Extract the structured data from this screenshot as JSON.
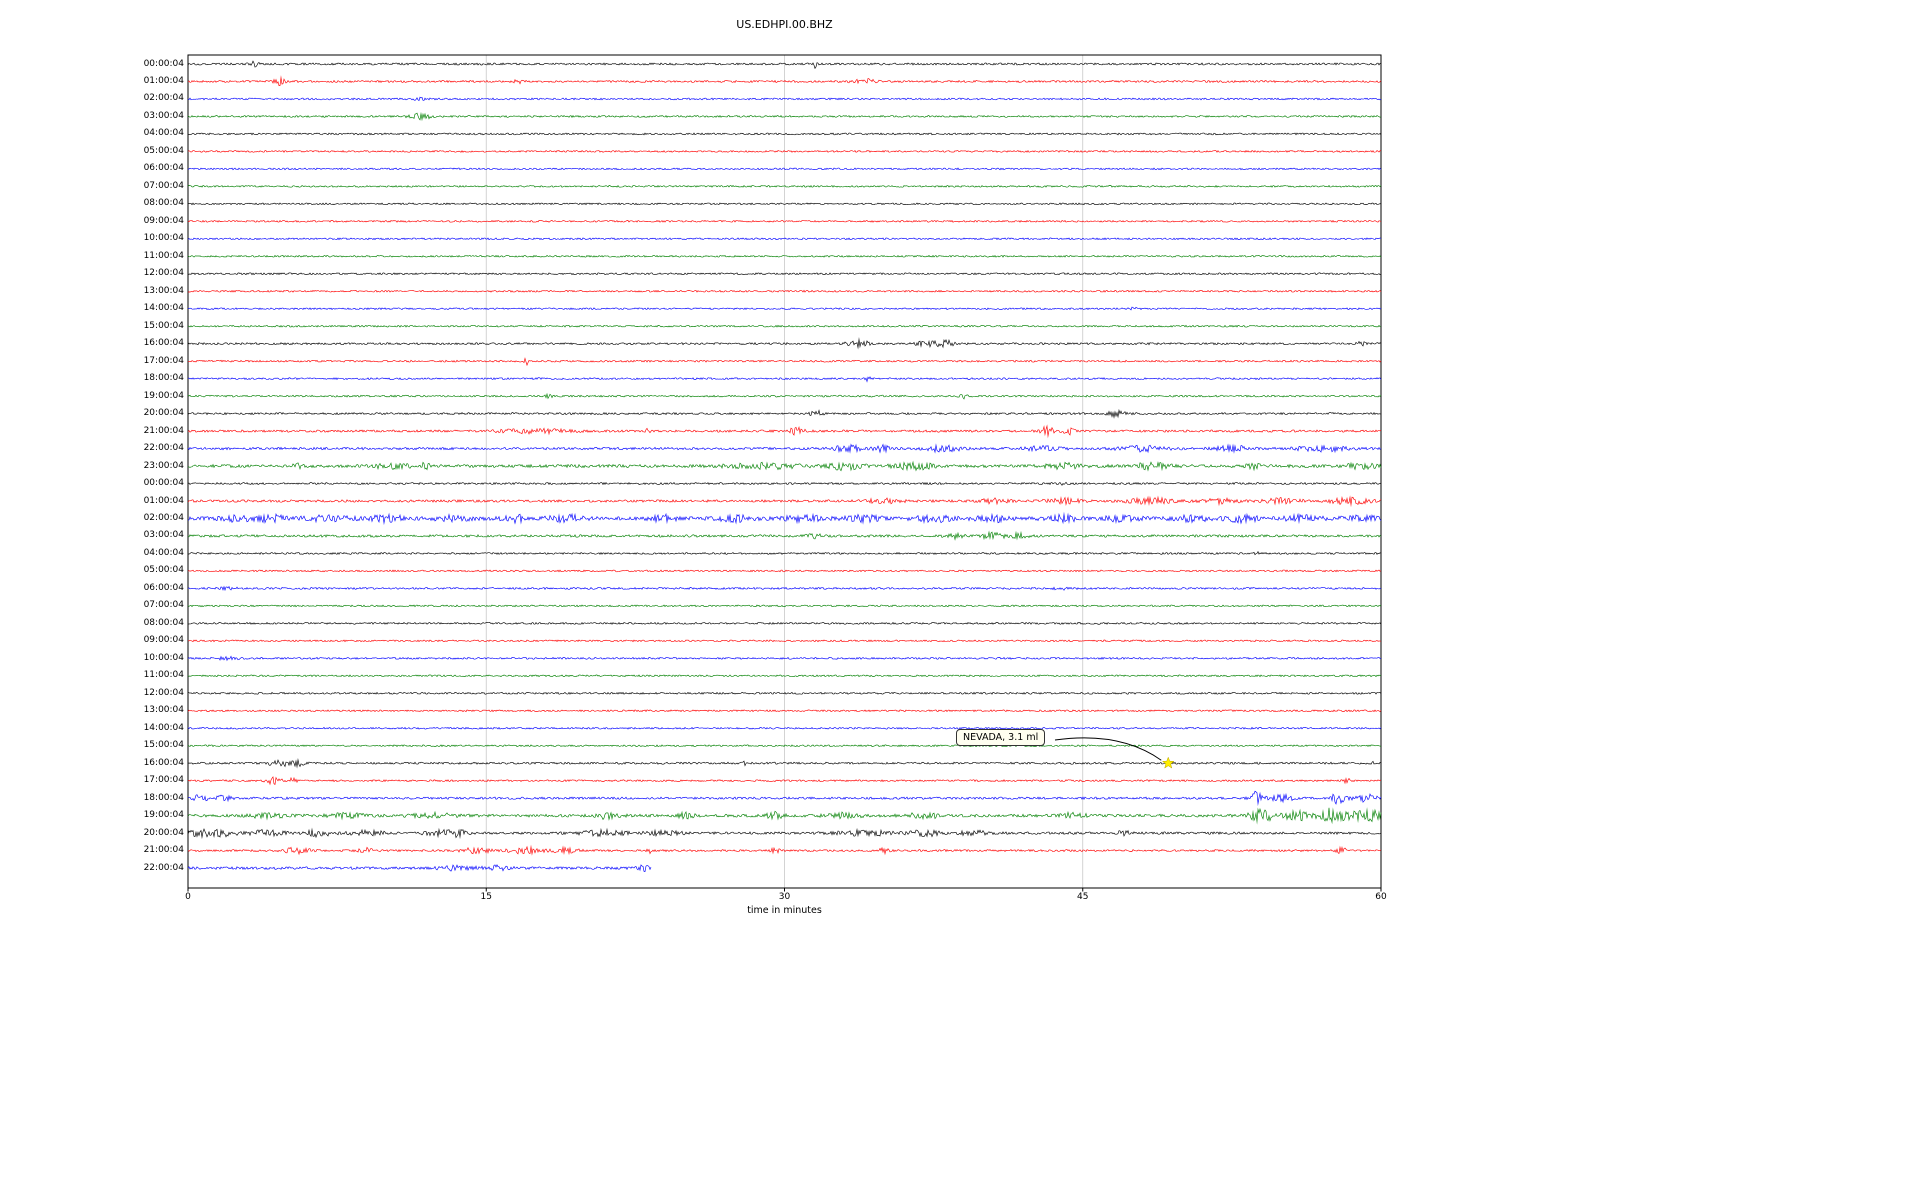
{
  "title": "US.EDHPI.00.BHZ",
  "xlabel": "time in minutes",
  "annotation": {
    "text": "NEVADA, 3.1 ml",
    "row_index": 40,
    "row_label": "16:00:04",
    "x_min": 49.3,
    "marker": "yellow-star"
  },
  "colors": {
    "background": "#ffffff",
    "grid": "#c8c8c8",
    "axis": "#000000",
    "star": "#ffef00"
  },
  "chart_data": {
    "type": "line",
    "subtype": "helicorder-seismogram",
    "x_range": [
      0,
      60
    ],
    "x_ticks": [
      "0",
      "15",
      "30",
      "45",
      "60"
    ],
    "grid_minutes": [
      15,
      30,
      45
    ],
    "trace_colors": {
      "black": "#000000",
      "red": "#ff0000",
      "blue": "#0000ff",
      "green": "#008000"
    },
    "rows": [
      {
        "label": "00:00:04",
        "color": "black",
        "amp": 1.0,
        "events": [
          [
            3.3,
            2.5,
            0.3
          ],
          [
            31.5,
            5,
            0.12
          ]
        ]
      },
      {
        "label": "01:00:04",
        "color": "red",
        "amp": 1.0,
        "events": [
          [
            4.6,
            3.5,
            0.35
          ],
          [
            16.6,
            3.5,
            0.25
          ],
          [
            33.5,
            2,
            0.3
          ],
          [
            34.3,
            2.5,
            0.5
          ]
        ]
      },
      {
        "label": "02:00:04",
        "color": "blue",
        "amp": 0.9,
        "events": [
          [
            11.5,
            1.2,
            0.6
          ]
        ]
      },
      {
        "label": "03:00:04",
        "color": "green",
        "amp": 0.9,
        "events": [
          [
            11.7,
            2.8,
            0.9
          ]
        ]
      },
      {
        "label": "04:00:04",
        "color": "black",
        "amp": 0.9,
        "events": []
      },
      {
        "label": "05:00:04",
        "color": "red",
        "amp": 0.85,
        "events": []
      },
      {
        "label": "06:00:04",
        "color": "blue",
        "amp": 0.85,
        "events": []
      },
      {
        "label": "07:00:04",
        "color": "green",
        "amp": 0.85,
        "events": []
      },
      {
        "label": "08:00:04",
        "color": "black",
        "amp": 0.85,
        "events": []
      },
      {
        "label": "09:00:04",
        "color": "red",
        "amp": 0.85,
        "events": []
      },
      {
        "label": "10:00:04",
        "color": "blue",
        "amp": 0.85,
        "events": []
      },
      {
        "label": "11:00:04",
        "color": "green",
        "amp": 0.85,
        "events": []
      },
      {
        "label": "12:00:04",
        "color": "black",
        "amp": 0.9,
        "events": []
      },
      {
        "label": "13:00:04",
        "color": "red",
        "amp": 0.85,
        "events": []
      },
      {
        "label": "14:00:04",
        "color": "blue",
        "amp": 0.85,
        "events": [
          [
            47.5,
            1.2,
            0.3
          ]
        ]
      },
      {
        "label": "15:00:04",
        "color": "green",
        "amp": 0.85,
        "events": []
      },
      {
        "label": "16:00:04",
        "color": "black",
        "amp": 1.0,
        "events": [
          [
            33.7,
            4,
            0.7
          ],
          [
            37.3,
            3,
            0.9
          ],
          [
            38.2,
            3,
            0.4
          ],
          [
            59,
            1.8,
            0.3
          ]
        ]
      },
      {
        "label": "17:00:04",
        "color": "red",
        "amp": 0.9,
        "events": [
          [
            17,
            4.5,
            0.12
          ]
        ]
      },
      {
        "label": "18:00:04",
        "color": "blue",
        "amp": 0.9,
        "events": [
          [
            34.2,
            3.5,
            0.18
          ]
        ]
      },
      {
        "label": "19:00:04",
        "color": "green",
        "amp": 0.9,
        "events": [
          [
            18.2,
            2,
            0.3
          ],
          [
            39,
            2.8,
            0.2
          ]
        ]
      },
      {
        "label": "20:00:04",
        "color": "black",
        "amp": 1.0,
        "events": [
          [
            31.6,
            3,
            0.4
          ],
          [
            46.7,
            2.8,
            0.7
          ]
        ]
      },
      {
        "label": "21:00:04",
        "color": "red",
        "amp": 1.1,
        "events": [
          [
            17.5,
            2,
            2.5
          ],
          [
            23.1,
            3.5,
            0.15
          ],
          [
            30.6,
            3.5,
            0.5
          ],
          [
            43.2,
            4.5,
            0.5
          ],
          [
            44.3,
            3.5,
            0.4
          ]
        ]
      },
      {
        "label": "22:00:04",
        "color": "blue",
        "amp": 1.2,
        "events": [
          [
            33.2,
            3.5,
            0.9
          ],
          [
            34.9,
            3,
            0.6
          ],
          [
            38,
            3,
            1.2
          ],
          [
            43,
            2.2,
            1.2
          ],
          [
            48,
            2.8,
            1.6
          ],
          [
            52.5,
            2.5,
            1.2
          ],
          [
            57,
            2.8,
            1.6
          ]
        ]
      },
      {
        "label": "23:00:04",
        "color": "green",
        "amp": 1.5,
        "events": [
          [
            5.5,
            3,
            0.3
          ],
          [
            10.2,
            2.5,
            1.2
          ],
          [
            11.8,
            3,
            0.6
          ],
          [
            29,
            2.5,
            2.5
          ],
          [
            33,
            3.5,
            1.2
          ],
          [
            36.5,
            3,
            1.5
          ],
          [
            44,
            2.5,
            1.2
          ],
          [
            48.5,
            3,
            1.2
          ],
          [
            53.5,
            2.5,
            0.6
          ],
          [
            59,
            2.5,
            1.0
          ]
        ]
      },
      {
        "label": "00:00:04",
        "color": "black",
        "amp": 0.95,
        "events": [
          [
            44,
            1.3,
            0.5
          ]
        ]
      },
      {
        "label": "01:00:04",
        "color": "red",
        "amp": 1.2,
        "events": [
          [
            35,
            2,
            1.2
          ],
          [
            40.5,
            2.5,
            0.9
          ],
          [
            44,
            2.5,
            1.2
          ],
          [
            48.5,
            3,
            1.6
          ],
          [
            52,
            2.5,
            1.2
          ],
          [
            55,
            2.5,
            1.2
          ],
          [
            58.5,
            3.5,
            1.3
          ]
        ]
      },
      {
        "label": "02:00:04",
        "color": "blue",
        "amp": 1.8,
        "events": [
          [
            2.5,
            2.5,
            1.2
          ],
          [
            4.2,
            3,
            0.9
          ],
          [
            7,
            2.5,
            1.6
          ],
          [
            10,
            3,
            1.2
          ],
          [
            13.2,
            2.5,
            1.2
          ],
          [
            16.5,
            3.5,
            0.9
          ],
          [
            19,
            3,
            1.2
          ],
          [
            24,
            3,
            0.9
          ],
          [
            27.5,
            2.5,
            1.2
          ],
          [
            31,
            3,
            1.2
          ],
          [
            34,
            2.5,
            1.2
          ],
          [
            37.5,
            3,
            1.2
          ],
          [
            40.5,
            3,
            1.2
          ],
          [
            44,
            2.5,
            1.2
          ],
          [
            47,
            2.5,
            1.2
          ],
          [
            50.5,
            2.5,
            1.2
          ],
          [
            53,
            3,
            1.2
          ],
          [
            56,
            2.5,
            1.2
          ],
          [
            59,
            2.5,
            1.2
          ]
        ]
      },
      {
        "label": "03:00:04",
        "color": "green",
        "amp": 1.2,
        "events": [
          [
            31.5,
            1.8,
            0.6
          ],
          [
            38.5,
            2.5,
            0.6
          ],
          [
            40.5,
            3,
            0.9
          ],
          [
            41.8,
            2.5,
            0.6
          ]
        ]
      },
      {
        "label": "04:00:04",
        "color": "black",
        "amp": 0.9,
        "events": [
          [
            53.8,
            1.3,
            0.2
          ]
        ]
      },
      {
        "label": "05:00:04",
        "color": "red",
        "amp": 0.85,
        "events": []
      },
      {
        "label": "06:00:04",
        "color": "blue",
        "amp": 0.95,
        "events": [
          [
            2,
            1.2,
            0.6
          ],
          [
            44,
            1.2,
            0.6
          ]
        ]
      },
      {
        "label": "07:00:04",
        "color": "green",
        "amp": 0.85,
        "events": []
      },
      {
        "label": "08:00:04",
        "color": "black",
        "amp": 0.9,
        "events": []
      },
      {
        "label": "09:00:04",
        "color": "red",
        "amp": 0.85,
        "events": []
      },
      {
        "label": "10:00:04",
        "color": "blue",
        "amp": 0.9,
        "events": [
          [
            2,
            1.2,
            1.0
          ]
        ]
      },
      {
        "label": "11:00:04",
        "color": "green",
        "amp": 0.85,
        "events": []
      },
      {
        "label": "12:00:04",
        "color": "black",
        "amp": 0.9,
        "events": []
      },
      {
        "label": "13:00:04",
        "color": "red",
        "amp": 0.85,
        "events": []
      },
      {
        "label": "14:00:04",
        "color": "blue",
        "amp": 0.85,
        "events": []
      },
      {
        "label": "15:00:04",
        "color": "green",
        "amp": 0.85,
        "events": []
      },
      {
        "label": "16:00:04",
        "color": "black",
        "amp": 1.0,
        "events": [
          [
            4.6,
            3,
            0.8
          ],
          [
            5.6,
            2.5,
            0.5
          ],
          [
            28,
            2.8,
            0.12
          ],
          [
            59.5,
            1.8,
            0.2
          ]
        ]
      },
      {
        "label": "17:00:04",
        "color": "red",
        "amp": 0.9,
        "events": [
          [
            4.3,
            3.5,
            0.5
          ],
          [
            5.2,
            2.5,
            0.35
          ],
          [
            58.3,
            4.5,
            0.18
          ]
        ]
      },
      {
        "label": "18:00:04",
        "color": "blue",
        "amp": 1.1,
        "events": [
          [
            0.6,
            2.8,
            0.6
          ],
          [
            1.8,
            2.2,
            0.6
          ],
          [
            53.7,
            6.5,
            0.4
          ],
          [
            55,
            3,
            0.9
          ],
          [
            57.8,
            7.5,
            0.45
          ],
          [
            59.2,
            3.5,
            0.9
          ]
        ]
      },
      {
        "label": "19:00:04",
        "color": "green",
        "amp": 1.4,
        "events": [
          [
            4,
            2.2,
            1.2
          ],
          [
            8,
            2.2,
            1.2
          ],
          [
            12.5,
            2.2,
            1.6
          ],
          [
            21,
            2.5,
            0.9
          ],
          [
            25,
            2.5,
            0.6
          ],
          [
            29.5,
            3,
            0.6
          ],
          [
            33,
            2.5,
            1.2
          ],
          [
            37,
            2.5,
            1.2
          ],
          [
            44.5,
            2.5,
            0.9
          ],
          [
            54,
            5.5,
            1.0
          ],
          [
            55.8,
            4.5,
            0.9
          ],
          [
            57.4,
            6.5,
            0.7
          ],
          [
            58.6,
            5.5,
            0.9
          ],
          [
            59.6,
            4.5,
            0.6
          ]
        ]
      },
      {
        "label": "20:00:04",
        "color": "black",
        "amp": 1.2,
        "events": [
          [
            0.6,
            3,
            0.9
          ],
          [
            1.8,
            2.8,
            0.9
          ],
          [
            4,
            2.8,
            1.2
          ],
          [
            6.6,
            3.2,
            0.9
          ],
          [
            9,
            2.2,
            1.2
          ],
          [
            12.6,
            3.5,
            0.9
          ],
          [
            13.6,
            3,
            0.6
          ],
          [
            21,
            2.5,
            1.8
          ],
          [
            24,
            2.5,
            1.2
          ],
          [
            34,
            2.8,
            1.8
          ],
          [
            37,
            3,
            1.2
          ],
          [
            39.5,
            2.8,
            0.9
          ],
          [
            47,
            2.2,
            0.6
          ]
        ]
      },
      {
        "label": "21:00:04",
        "color": "red",
        "amp": 1.0,
        "events": [
          [
            5.5,
            3,
            0.9
          ],
          [
            9,
            2.2,
            0.6
          ],
          [
            14.5,
            3,
            0.9
          ],
          [
            17,
            3,
            1.2
          ],
          [
            19,
            2.5,
            0.9
          ],
          [
            23.2,
            3.5,
            0.18
          ],
          [
            29.5,
            2.2,
            0.35
          ],
          [
            35,
            2.2,
            0.35
          ],
          [
            58,
            3.5,
            0.3
          ]
        ]
      },
      {
        "label": "22:00:04",
        "color": "blue",
        "amp": 1.3,
        "end": 23.3,
        "events": [
          [
            13.5,
            2,
            1.2
          ],
          [
            15.5,
            2,
            0.9
          ],
          [
            22.9,
            2.5,
            0.35
          ]
        ]
      }
    ]
  }
}
